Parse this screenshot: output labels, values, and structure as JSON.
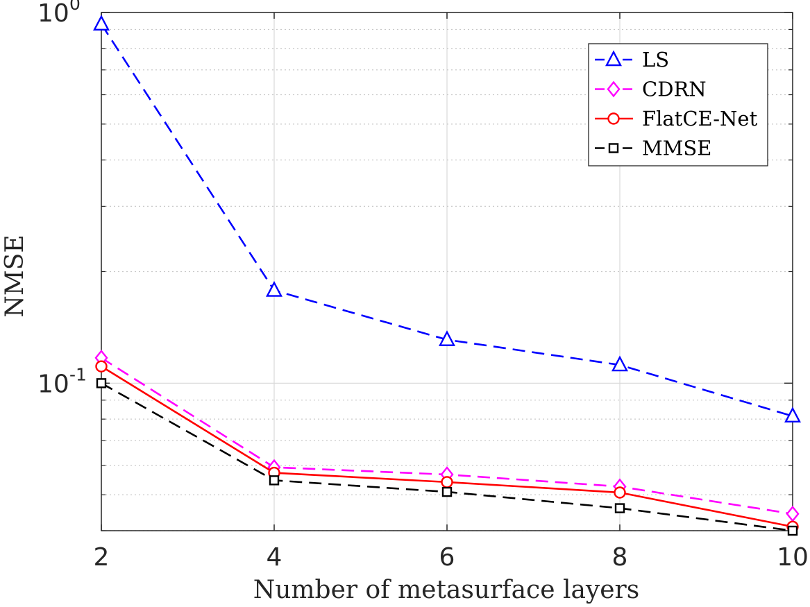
{
  "chart_data": {
    "type": "line",
    "title": "",
    "xlabel": "Number of metasurface layers",
    "ylabel": "NMSE",
    "x": [
      2,
      4,
      6,
      8,
      10
    ],
    "xlim": [
      2,
      10
    ],
    "ylim": [
      0.04,
      1.0
    ],
    "yscale": "log",
    "grid": true,
    "legend_location": "top-right",
    "xticks": [
      "2",
      "4",
      "6",
      "8",
      "10"
    ],
    "yticks": [
      {
        "base": "10",
        "exp": "-1",
        "value": 0.1
      },
      {
        "base": "10",
        "exp": "0",
        "value": 1.0
      }
    ],
    "series": [
      {
        "name": "LS",
        "values": [
          0.93,
          0.178,
          0.131,
          0.112,
          0.0815
        ],
        "color": "#0000ff",
        "dash": "dashed",
        "marker": "triangle"
      },
      {
        "name": "CDRN",
        "values": [
          0.117,
          0.0593,
          0.0567,
          0.0526,
          0.0444
        ],
        "color": "#ff00ff",
        "dash": "dashed",
        "marker": "diamond"
      },
      {
        "name": "FlatCE-Net",
        "values": [
          0.111,
          0.0573,
          0.0541,
          0.0507,
          0.041
        ],
        "color": "#ff0000",
        "dash": "solid",
        "marker": "circle"
      },
      {
        "name": "MMSE",
        "values": [
          0.1,
          0.0547,
          0.0509,
          0.046,
          0.04
        ],
        "color": "#000000",
        "dash": "dashed",
        "marker": "square"
      }
    ]
  }
}
